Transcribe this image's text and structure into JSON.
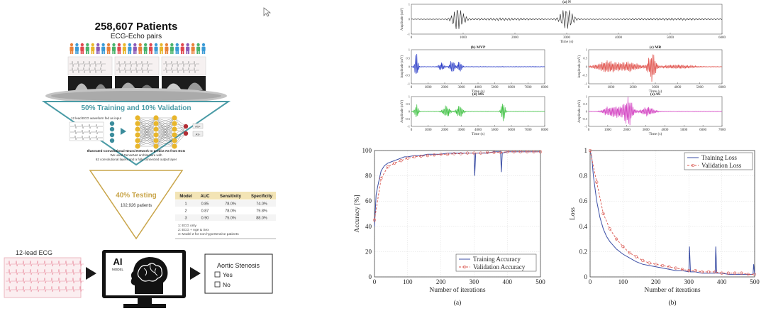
{
  "colors": {
    "funnel_silver": "#b9b9b9",
    "funnel_dark": "#5f5f5f",
    "teal": "#4a9ba6",
    "gold": "#c9a54a",
    "neuron_gold": "#e8b62c",
    "neuron_teal": "#3b8c9c",
    "neuron_red": "#b32d35",
    "ecg_pink": "#e88a9c",
    "monitor_black": "#121212",
    "wave_s": "#333333",
    "wave_mvp": "#2a3cc7",
    "wave_mr": "#e0504a",
    "wave_ms": "#3cc040",
    "wave_as": "#d23dc0",
    "train_line": "#3b4ea5",
    "val_line": "#d9544d"
  },
  "infographic": {
    "title": "258,607 Patients",
    "subtitle": "ECG-Echo pairs",
    "people_colors": [
      "#e8823a",
      "#3b9bd6",
      "#e0494f",
      "#49b36c",
      "#e8b62c",
      "#8a5bb8",
      "#3b9bd6",
      "#e8823a",
      "#49b36c",
      "#e0494f",
      "#e8b62c",
      "#3b9bd6",
      "#8a5bb8",
      "#e8823a",
      "#49b36c",
      "#e0494f",
      "#3b9bd6",
      "#e8b62c",
      "#e8823a",
      "#49b36c",
      "#3b9bd6",
      "#e0494f",
      "#8a5bb8",
      "#e8823a",
      "#49b36c",
      "#3b9bd6"
    ],
    "training_label": "50% Training and 10% Validation",
    "ecg_input_label": "12 lead ECG waveform fed as input",
    "output_labels": [
      "AS+",
      "AS-"
    ],
    "cnn_caption_bold": "Illustrated Convolutional Neural Network to predict AS from ECG",
    "cnn_caption_1": "We used DenseNet architecture with",
    "cnn_caption_2": "62 convolutional layers and a fully connected output layer",
    "testing_label": "40% Testing",
    "testing_count": "102,926 patients",
    "table": {
      "headers": [
        "Model",
        "AUC",
        "Sensitivity",
        "Specificity"
      ],
      "rows": [
        [
          "1",
          "0.85",
          "78.0%",
          "74.0%"
        ],
        [
          "2",
          "0.87",
          "78.0%",
          "79.8%"
        ],
        [
          "3",
          "0.90",
          "75.0%",
          "88.0%"
        ]
      ],
      "notes": [
        "1:  ECG only",
        "2:  ECG + Age & Sex",
        "3:  Model 2 for non-hypertensive patients"
      ]
    },
    "ecg_label": "12-lead ECG",
    "ai_label": "AI",
    "model_label": "MODEL",
    "result_title": "Aortic Stenosis",
    "option_yes": "Yes",
    "option_no": "No"
  },
  "chart_data": [
    {
      "type": "line",
      "id": "signal-n",
      "title": "(a) N",
      "xlabel": "Time (s)",
      "ylabel": "Amplitude (mV)",
      "xlim": [
        0,
        6000
      ],
      "ylim": [
        -1,
        1
      ],
      "xticks": [
        "0",
        "1000",
        "2000",
        "3000",
        "4000",
        "5000",
        "6000"
      ],
      "yticks": [
        "-1",
        "0",
        "1"
      ],
      "wave_description": "two heart-sound bursts centered near 900 and 3000"
    },
    {
      "type": "line",
      "id": "signal-mvp",
      "title": "(b) MVP",
      "xlabel": "Time (s)",
      "ylabel": "Amplitude (mV)",
      "xlim": [
        0,
        8000
      ],
      "ylim": [
        -1,
        1
      ],
      "xticks": [
        "0",
        "1000",
        "2000",
        "3000",
        "4000",
        "5000",
        "6000",
        "7000",
        "8000"
      ],
      "yticks": [
        "-1",
        "-0.5",
        "0",
        "0.5",
        "1"
      ]
    },
    {
      "type": "line",
      "id": "signal-mr",
      "title": "(c) MR",
      "xlabel": "Time (s)",
      "ylabel": "Amplitude (mV)",
      "xlim": [
        0,
        6000
      ],
      "ylim": [
        -1,
        1
      ],
      "xticks": [
        "0",
        "1000",
        "2000",
        "3000",
        "4000",
        "5000",
        "6000"
      ],
      "yticks": [
        "-1",
        "-0.5",
        "0",
        "0.5",
        "1"
      ]
    },
    {
      "type": "line",
      "id": "signal-ms",
      "title": "(d) MS",
      "xlabel": "Time (s)",
      "ylabel": "Amplitude (mV)",
      "xlim": [
        0,
        8000
      ],
      "ylim": [
        -1,
        1
      ],
      "xticks": [
        "0",
        "1000",
        "2000",
        "3000",
        "4000",
        "5000",
        "6000",
        "7000",
        "8000"
      ],
      "yticks": [
        "-1",
        "-0.5",
        "0",
        "0.5",
        "1"
      ]
    },
    {
      "type": "line",
      "id": "signal-as",
      "title": "(e) AS",
      "xlabel": "Time (s)",
      "ylabel": "Amplitude (mV)",
      "xlim": [
        0,
        7000
      ],
      "ylim": [
        -1,
        1
      ],
      "xticks": [
        "0",
        "1000",
        "2000",
        "3000",
        "4000",
        "5000",
        "6000",
        "7000"
      ],
      "yticks": [
        "-1",
        "-0.5",
        "0",
        "0.5",
        "1"
      ]
    },
    {
      "type": "line",
      "id": "accuracy",
      "caption": "(a)",
      "xlabel": "Number of iterations",
      "ylabel": "Accuracy [%]",
      "xlim": [
        0,
        500
      ],
      "ylim": [
        0,
        100
      ],
      "xticks": [
        "0",
        "100",
        "200",
        "300",
        "400",
        "500"
      ],
      "yticks": [
        "0",
        "20",
        "40",
        "60",
        "80",
        "100"
      ],
      "grid": true,
      "legend_position": "bottom-right",
      "series": [
        {
          "name": "Training Accuracy",
          "style": "solid",
          "x": [
            0,
            5,
            10,
            15,
            20,
            30,
            40,
            50,
            60,
            70,
            80,
            90,
            100,
            120,
            140,
            160,
            180,
            200,
            220,
            240,
            260,
            280,
            300,
            302,
            305,
            320,
            340,
            360,
            380,
            382,
            385,
            400,
            420,
            440,
            460,
            480,
            500
          ],
          "y": [
            40,
            65,
            72,
            78,
            84,
            88,
            90,
            91,
            92,
            93,
            94,
            95,
            95,
            96,
            96,
            97,
            97,
            97,
            98,
            98,
            98,
            98,
            98,
            80,
            98,
            98,
            98,
            99,
            99,
            83,
            98,
            99,
            99,
            99,
            99,
            99,
            99
          ]
        },
        {
          "name": "Validation Accuracy",
          "style": "dashed-circles",
          "x": [
            0,
            20,
            40,
            60,
            80,
            100,
            120,
            140,
            160,
            180,
            200,
            220,
            240,
            260,
            280,
            300,
            320,
            340,
            360,
            380,
            400,
            420,
            440,
            460,
            480,
            500
          ],
          "y": [
            45,
            78,
            87,
            90,
            92,
            94,
            95,
            95.5,
            96,
            96.5,
            97,
            97,
            97.5,
            97.5,
            98,
            98,
            98,
            98.5,
            98.5,
            98.5,
            99,
            99,
            99,
            99,
            99,
            99
          ]
        }
      ]
    },
    {
      "type": "line",
      "id": "loss",
      "caption": "(b)",
      "xlabel": "Number of iterations",
      "ylabel": "Loss",
      "xlim": [
        0,
        500
      ],
      "ylim": [
        0,
        1
      ],
      "xticks": [
        "0",
        "100",
        "200",
        "300",
        "400",
        "500"
      ],
      "yticks": [
        "0",
        "0.2",
        "0.4",
        "0.6",
        "0.8",
        "1"
      ],
      "grid": true,
      "legend_position": "top-right",
      "series": [
        {
          "name": "Training Loss",
          "style": "solid",
          "x": [
            0,
            5,
            10,
            20,
            30,
            40,
            50,
            60,
            80,
            100,
            120,
            140,
            160,
            180,
            200,
            220,
            240,
            260,
            280,
            300,
            302,
            305,
            320,
            340,
            360,
            380,
            382,
            385,
            400,
            420,
            440,
            460,
            480,
            495,
            497,
            500
          ],
          "y": [
            1.0,
            0.95,
            0.8,
            0.6,
            0.47,
            0.38,
            0.32,
            0.28,
            0.22,
            0.18,
            0.15,
            0.12,
            0.1,
            0.09,
            0.08,
            0.07,
            0.06,
            0.05,
            0.05,
            0.04,
            0.24,
            0.04,
            0.04,
            0.03,
            0.03,
            0.03,
            0.24,
            0.03,
            0.03,
            0.02,
            0.02,
            0.02,
            0.02,
            0.02,
            0.1,
            0.02
          ]
        },
        {
          "name": "Validation Loss",
          "style": "dashed-circles",
          "x": [
            0,
            20,
            40,
            60,
            80,
            100,
            120,
            140,
            160,
            180,
            200,
            220,
            240,
            260,
            280,
            300,
            320,
            340,
            360,
            380,
            400,
            420,
            440,
            460,
            480,
            500
          ],
          "y": [
            1.0,
            0.75,
            0.5,
            0.38,
            0.3,
            0.24,
            0.19,
            0.16,
            0.13,
            0.11,
            0.1,
            0.09,
            0.08,
            0.07,
            0.06,
            0.05,
            0.05,
            0.04,
            0.04,
            0.04,
            0.03,
            0.03,
            0.03,
            0.03,
            0.02,
            0.02
          ]
        }
      ]
    }
  ]
}
